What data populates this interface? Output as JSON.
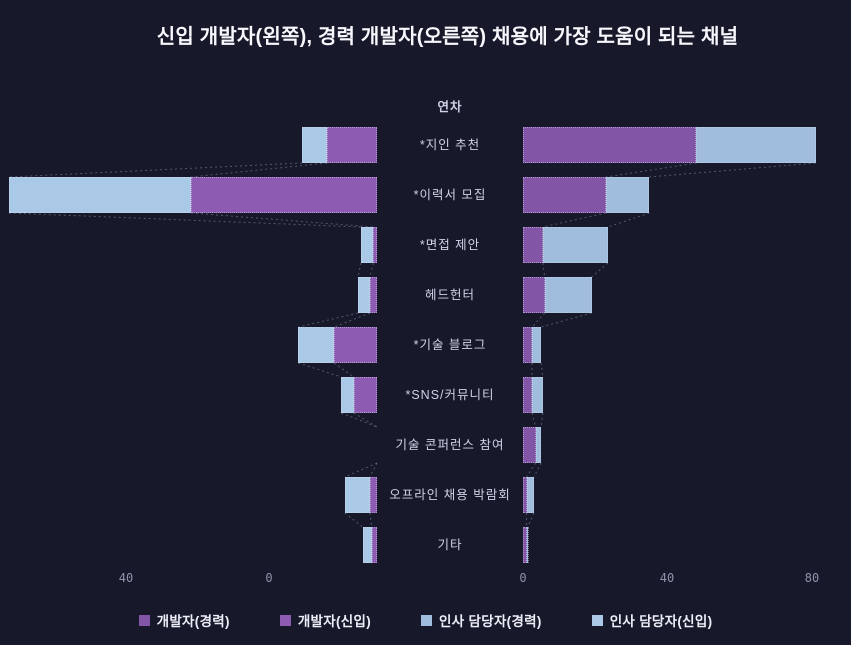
{
  "title": "신입 개발자(왼쪽), 경력 개발자(오른쪽) 채용에 가장 도움이 되는 채널",
  "center_axis": {
    "header": "연차"
  },
  "colors": {
    "background": "#171829",
    "title_text": "#f7f8fd",
    "label_text": "#cfd2e6",
    "tick_text": "#8f93ac",
    "legend_text": "#eceef8",
    "dev_exp": "#8355a6",
    "dev_new": "#8d5cb2",
    "hr_exp": "#a0bddd",
    "hr_new": "#aac9e6",
    "connector": "rgba(160,166,195,0.45)"
  },
  "axes": {
    "left_ticks": [
      {
        "label": "40",
        "x": 126
      },
      {
        "label": "0",
        "x": 269
      }
    ],
    "right_ticks": [
      {
        "label": "0",
        "x": 523
      },
      {
        "label": "40",
        "x": 667
      },
      {
        "label": "80",
        "x": 812
      }
    ]
  },
  "legend": [
    {
      "label": "개발자(경력)",
      "color_key": "dev_exp"
    },
    {
      "label": "개발자(신입)",
      "color_key": "dev_new"
    },
    {
      "label": "인사 담당자(경력)",
      "color_key": "hr_exp"
    },
    {
      "label": "인사 담당자(신입)",
      "color_key": "hr_new"
    }
  ],
  "chart_data": {
    "type": "bar",
    "subtype": "diverging stacked horizontal (butterfly / funnel with dotted connectors)",
    "title": "신입 개발자(왼쪽), 경력 개발자(오른쪽) 채용에 가장 도움이 되는 채널",
    "ylabel": "연차",
    "grid": false,
    "legend_position": "bottom-center",
    "categories": [
      "*지인 추천",
      "*이력서 모집",
      "*면접 제안",
      "헤드헌터",
      "*기술 블로그",
      "*SNS/커뮤니티",
      "기술 콘퍼런스 참여",
      "오프라인 채용 박람회",
      "기타"
    ],
    "left": {
      "panel": "신입 개발자 (왼쪽, 막대가 오른쪽 기준선에서 왼쪽으로)",
      "axis_tick_values": [
        40,
        0
      ],
      "series": [
        {
          "name": "개발자(신입)",
          "color_key": "dev_new",
          "values": [
            14,
            52,
            1,
            2,
            12,
            6.5,
            0,
            2,
            1.5
          ]
        },
        {
          "name": "인사 담당자(신입)",
          "color_key": "hr_new",
          "values": [
            7,
            51,
            3.5,
            3.3,
            10,
            3.5,
            0,
            7,
            2.5
          ]
        }
      ]
    },
    "right": {
      "panel": "경력 개발자 (오른쪽, 막대가 왼쪽 기준선에서 오른쪽으로)",
      "axis_tick_values": [
        0,
        40,
        80
      ],
      "xlim": [
        0,
        90
      ],
      "series": [
        {
          "name": "개발자(경력)",
          "color_key": "dev_exp",
          "values": [
            48,
            23,
            5.5,
            6,
            2.5,
            2.5,
            3.5,
            1,
            1
          ]
        },
        {
          "name": "인사 담당자(경력)",
          "color_key": "hr_exp",
          "values": [
            33,
            12,
            18,
            13,
            2.5,
            3,
            1.5,
            2,
            0.3
          ]
        }
      ]
    }
  }
}
